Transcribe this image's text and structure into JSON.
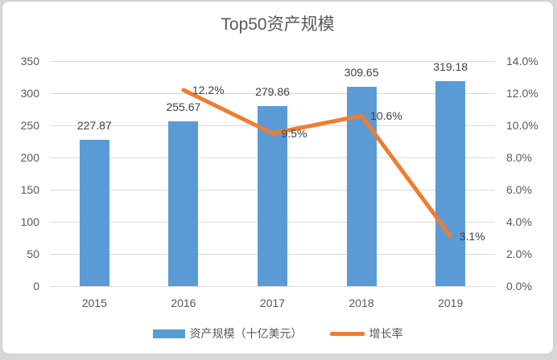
{
  "title": "Top50资产规模",
  "colors": {
    "bar": "#5B9BD5",
    "line": "#ED7D31",
    "grid": "#D9D9D9",
    "axis_text": "#595959",
    "label_text": "#404040",
    "title_text": "#595959",
    "page_bg": "#D7D7D7",
    "panel_border": "#CFCECE"
  },
  "chart_data": {
    "type": "bar+line",
    "title": "Top50资产规模",
    "categories": [
      "2015",
      "2016",
      "2017",
      "2018",
      "2019"
    ],
    "series": [
      {
        "name": "资产规模（十亿美元）",
        "type": "bar",
        "axis": "left",
        "values": [
          227.87,
          255.67,
          279.86,
          309.65,
          319.18
        ],
        "labels": [
          "227.87",
          "255.67",
          "279.86",
          "309.65",
          "319.18"
        ]
      },
      {
        "name": "增长率",
        "type": "line",
        "axis": "right",
        "values": [
          null,
          12.2,
          9.5,
          10.6,
          3.1
        ],
        "labels": [
          null,
          "12.2%",
          "9.5%",
          "10.6%",
          "3.1%"
        ]
      }
    ],
    "left_axis": {
      "min": 0,
      "max": 350,
      "step": 50,
      "ticks": [
        "0",
        "50",
        "100",
        "150",
        "200",
        "250",
        "300",
        "350"
      ]
    },
    "right_axis": {
      "min": 0,
      "max": 14,
      "step": 2,
      "ticks": [
        "0.0%",
        "2.0%",
        "4.0%",
        "6.0%",
        "8.0%",
        "10.0%",
        "12.0%",
        "14.0%"
      ]
    },
    "grid": true,
    "legend_position": "bottom",
    "legend": [
      {
        "label": "资产规模（十亿美元）",
        "swatch": "bar"
      },
      {
        "label": "增长率",
        "swatch": "line"
      }
    ]
  }
}
